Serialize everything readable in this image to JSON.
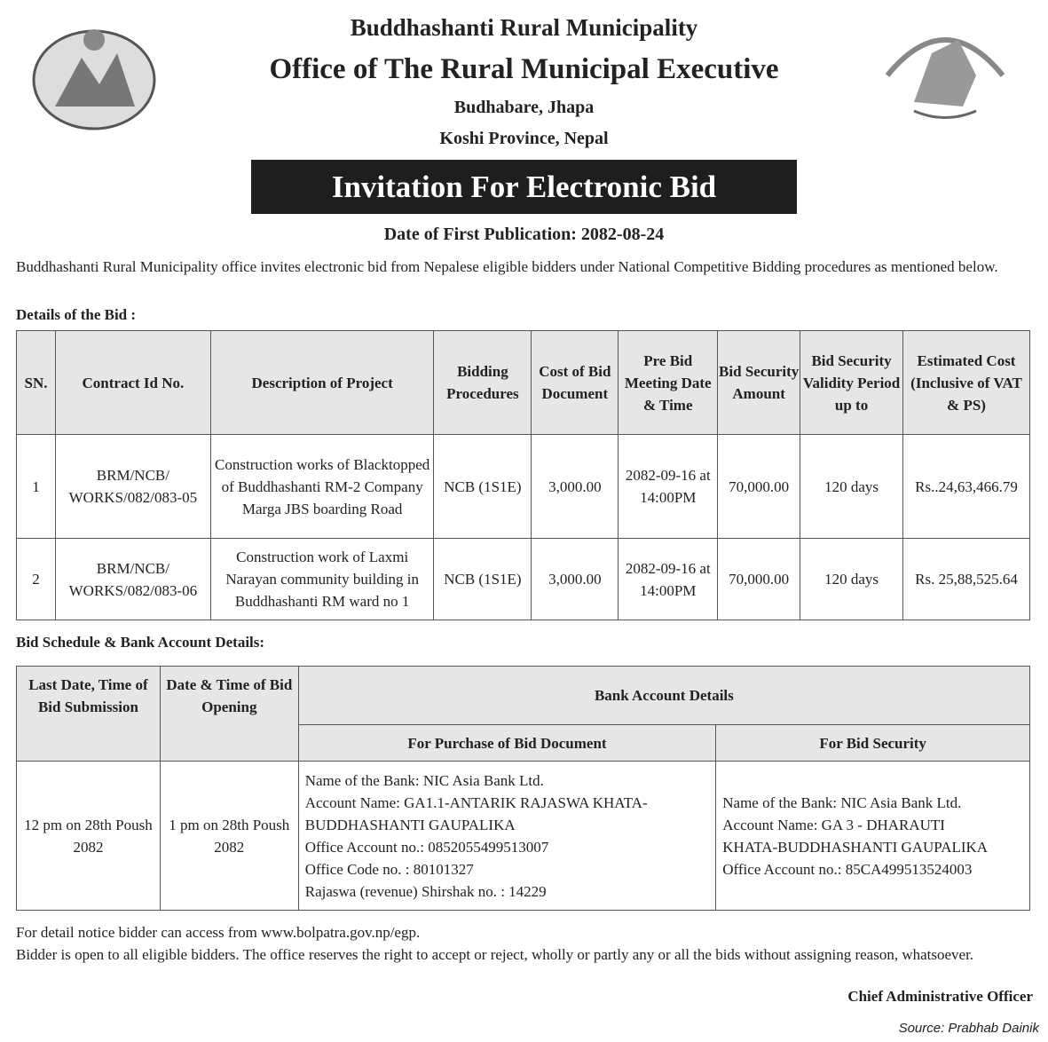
{
  "header": {
    "municipality": "Buddhashanti Rural Municipality",
    "office": "Office of The Rural Municipal Executive",
    "address": "Budhabare, Jhapa",
    "province": "Koshi Province, Nepal"
  },
  "title": "Invitation For Electronic Bid",
  "publication": "Date of First Publication: 2082-08-24",
  "intro": "Buddhashanti Rural Municipality office invites electronic bid from Nepalese eligible bidders under National Competitive Bidding procedures as mentioned below.",
  "details_label": "Details of the Bid :",
  "bid_table": {
    "headers": [
      "SN.",
      "Contract Id No.",
      "Description of Project",
      "Bidding Procedures",
      "Cost of Bid Document",
      "Pre Bid Meeting Date & Time",
      "Bid Security Amount",
      "Bid Security Validity Period up to",
      "Estimated Cost (Inclusive of VAT & PS)"
    ],
    "rows": [
      [
        "1",
        "BRM/NCB/ WORKS/082/083-05",
        "Construction works of Blacktopped of Buddhashanti RM-2 Company Marga JBS boarding Road",
        "NCB (1S1E)",
        "3,000.00",
        "2082-09-16 at 14:00PM",
        "70,000.00",
        "120 days",
        "Rs..24,63,466.79"
      ],
      [
        "2",
        "BRM/NCB/ WORKS/082/083-06",
        "Construction work of Laxmi Narayan community building in Buddhashanti RM ward no 1",
        "NCB (1S1E)",
        "3,000.00",
        "2082-09-16 at 14:00PM",
        "70,000.00",
        "120 days",
        "Rs. 25,88,525.64"
      ]
    ]
  },
  "schedule_label": "Bid Schedule & Bank Account Details:",
  "schedule_table": {
    "h_last": "Last Date, Time of Bid Submission",
    "h_open": "Date & Time of Bid Opening",
    "h_bank": "Bank Account Details",
    "h_purchase": "For Purchase of Bid Document",
    "h_security": "For Bid Security",
    "last": "12 pm on 28th Poush 2082",
    "open": "1 pm on 28th Poush 2082",
    "purchase": [
      "Name of the Bank: NIC Asia Bank Ltd.",
      "Account Name: GA1.1-ANTARIK RAJASWA KHATA-",
      "BUDDHASHANTI GAUPALIKA",
      "Office Account no.: 0852055499513007",
      "Office Code no. : 80101327",
      "Rajaswa (revenue) Shirshak no. : 14229"
    ],
    "security": [
      "Name of the Bank: NIC Asia Bank Ltd.",
      "Account Name: GA 3 - DHARAUTI",
      "KHATA-BUDDHASHANTI GAUPALIKA",
      "Office Account no.: 85CA499513524003"
    ]
  },
  "footer": {
    "note1": "For detail notice bidder can access from www.bolpatra.gov.np/egp.",
    "note2": "Bidder is open to all eligible bidders. The office reserves the right to accept or reject, wholly or partly any or all the bids without assigning reason, whatsoever.",
    "signatory": "Chief Administrative Officer",
    "source": "Source: Prabhab Dainik"
  },
  "logos": {
    "left": "nepal-emblem",
    "right": "municipality-logo"
  }
}
